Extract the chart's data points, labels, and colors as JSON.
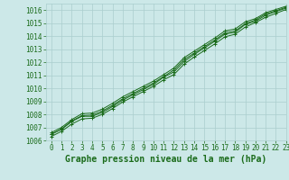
{
  "title": "Graphe pression niveau de la mer (hPa)",
  "xlim": [
    -0.5,
    23
  ],
  "ylim": [
    1006,
    1016.5
  ],
  "yticks": [
    1006,
    1007,
    1008,
    1009,
    1010,
    1011,
    1012,
    1013,
    1014,
    1015,
    1016
  ],
  "xticks": [
    0,
    1,
    2,
    3,
    4,
    5,
    6,
    7,
    8,
    9,
    10,
    11,
    12,
    13,
    14,
    15,
    16,
    17,
    18,
    19,
    20,
    21,
    22,
    23
  ],
  "background_color": "#cce8e8",
  "grid_color": "#aacece",
  "line_color": "#1a6b1a",
  "line1_y": [
    1006.5,
    1006.85,
    1007.45,
    1007.85,
    1007.85,
    1008.15,
    1008.6,
    1009.1,
    1009.5,
    1009.9,
    1010.3,
    1010.85,
    1011.25,
    1012.05,
    1012.6,
    1013.1,
    1013.6,
    1014.15,
    1014.3,
    1014.9,
    1015.15,
    1015.6,
    1015.9,
    1016.15
  ],
  "line2_y": [
    1006.3,
    1006.7,
    1007.25,
    1007.65,
    1007.7,
    1008.0,
    1008.45,
    1008.95,
    1009.35,
    1009.75,
    1010.15,
    1010.65,
    1011.05,
    1011.85,
    1012.4,
    1012.9,
    1013.4,
    1013.95,
    1014.15,
    1014.7,
    1015.05,
    1015.45,
    1015.75,
    1016.05
  ],
  "line3_y": [
    1006.6,
    1007.0,
    1007.6,
    1008.05,
    1008.1,
    1008.4,
    1008.85,
    1009.35,
    1009.75,
    1010.15,
    1010.55,
    1011.05,
    1011.55,
    1012.35,
    1012.85,
    1013.35,
    1013.85,
    1014.4,
    1014.55,
    1015.1,
    1015.35,
    1015.8,
    1016.05,
    1016.3
  ],
  "line4_y": [
    1006.45,
    1006.88,
    1007.5,
    1007.9,
    1007.95,
    1008.25,
    1008.7,
    1009.2,
    1009.6,
    1010.0,
    1010.4,
    1010.9,
    1011.4,
    1012.2,
    1012.7,
    1013.2,
    1013.7,
    1014.25,
    1014.4,
    1014.95,
    1015.25,
    1015.7,
    1015.95,
    1016.22
  ],
  "title_color": "#1a6b1a",
  "title_fontsize": 7,
  "tick_fontsize": 5.5,
  "tick_color": "#1a6b1a"
}
